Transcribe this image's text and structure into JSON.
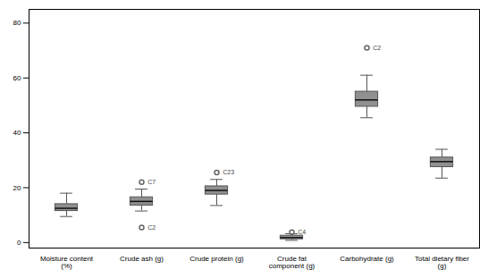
{
  "chart_data": {
    "type": "box",
    "categories": [
      "Moisture content\n(%)",
      "Crude ash (g)",
      "Crude protein (g)",
      "Crude fat\ncomponent (g)",
      "Carbohydrate (g)",
      "Total dietary fiber\n(g)"
    ],
    "boxes": [
      {
        "q1": 11.5,
        "median": 12.5,
        "q3": 14.0,
        "whisker_low": 9.5,
        "whisker_high": 18.0,
        "outliers": [],
        "outlier_labels": []
      },
      {
        "q1": 13.5,
        "median": 15.0,
        "q3": 16.5,
        "whisker_low": 11.5,
        "whisker_high": 19.5,
        "outliers": [
          22.0,
          5.5
        ],
        "outlier_labels": [
          "C7",
          "C2"
        ]
      },
      {
        "q1": 17.5,
        "median": 19.0,
        "q3": 20.5,
        "whisker_low": 13.5,
        "whisker_high": 23.0,
        "outliers": [
          25.5
        ],
        "outlier_labels": [
          "C23"
        ]
      },
      {
        "q1": 1.2,
        "median": 1.8,
        "q3": 2.5,
        "whisker_low": 0.8,
        "whisker_high": 3.2,
        "outliers": [
          3.8
        ],
        "outlier_labels": [
          "C4"
        ]
      },
      {
        "q1": 49.5,
        "median": 52.0,
        "q3": 55.0,
        "whisker_low": 45.5,
        "whisker_high": 61.0,
        "outliers": [
          71.0
        ],
        "outlier_labels": [
          "C2"
        ]
      },
      {
        "q1": 27.5,
        "median": 29.5,
        "q3": 31.0,
        "whisker_low": 23.5,
        "whisker_high": 34.0,
        "outliers": [],
        "outlier_labels": []
      }
    ],
    "ylim": [
      -2,
      85
    ],
    "yticks": [
      0,
      20,
      40,
      60,
      80
    ],
    "color": "#909090",
    "grid": false
  }
}
